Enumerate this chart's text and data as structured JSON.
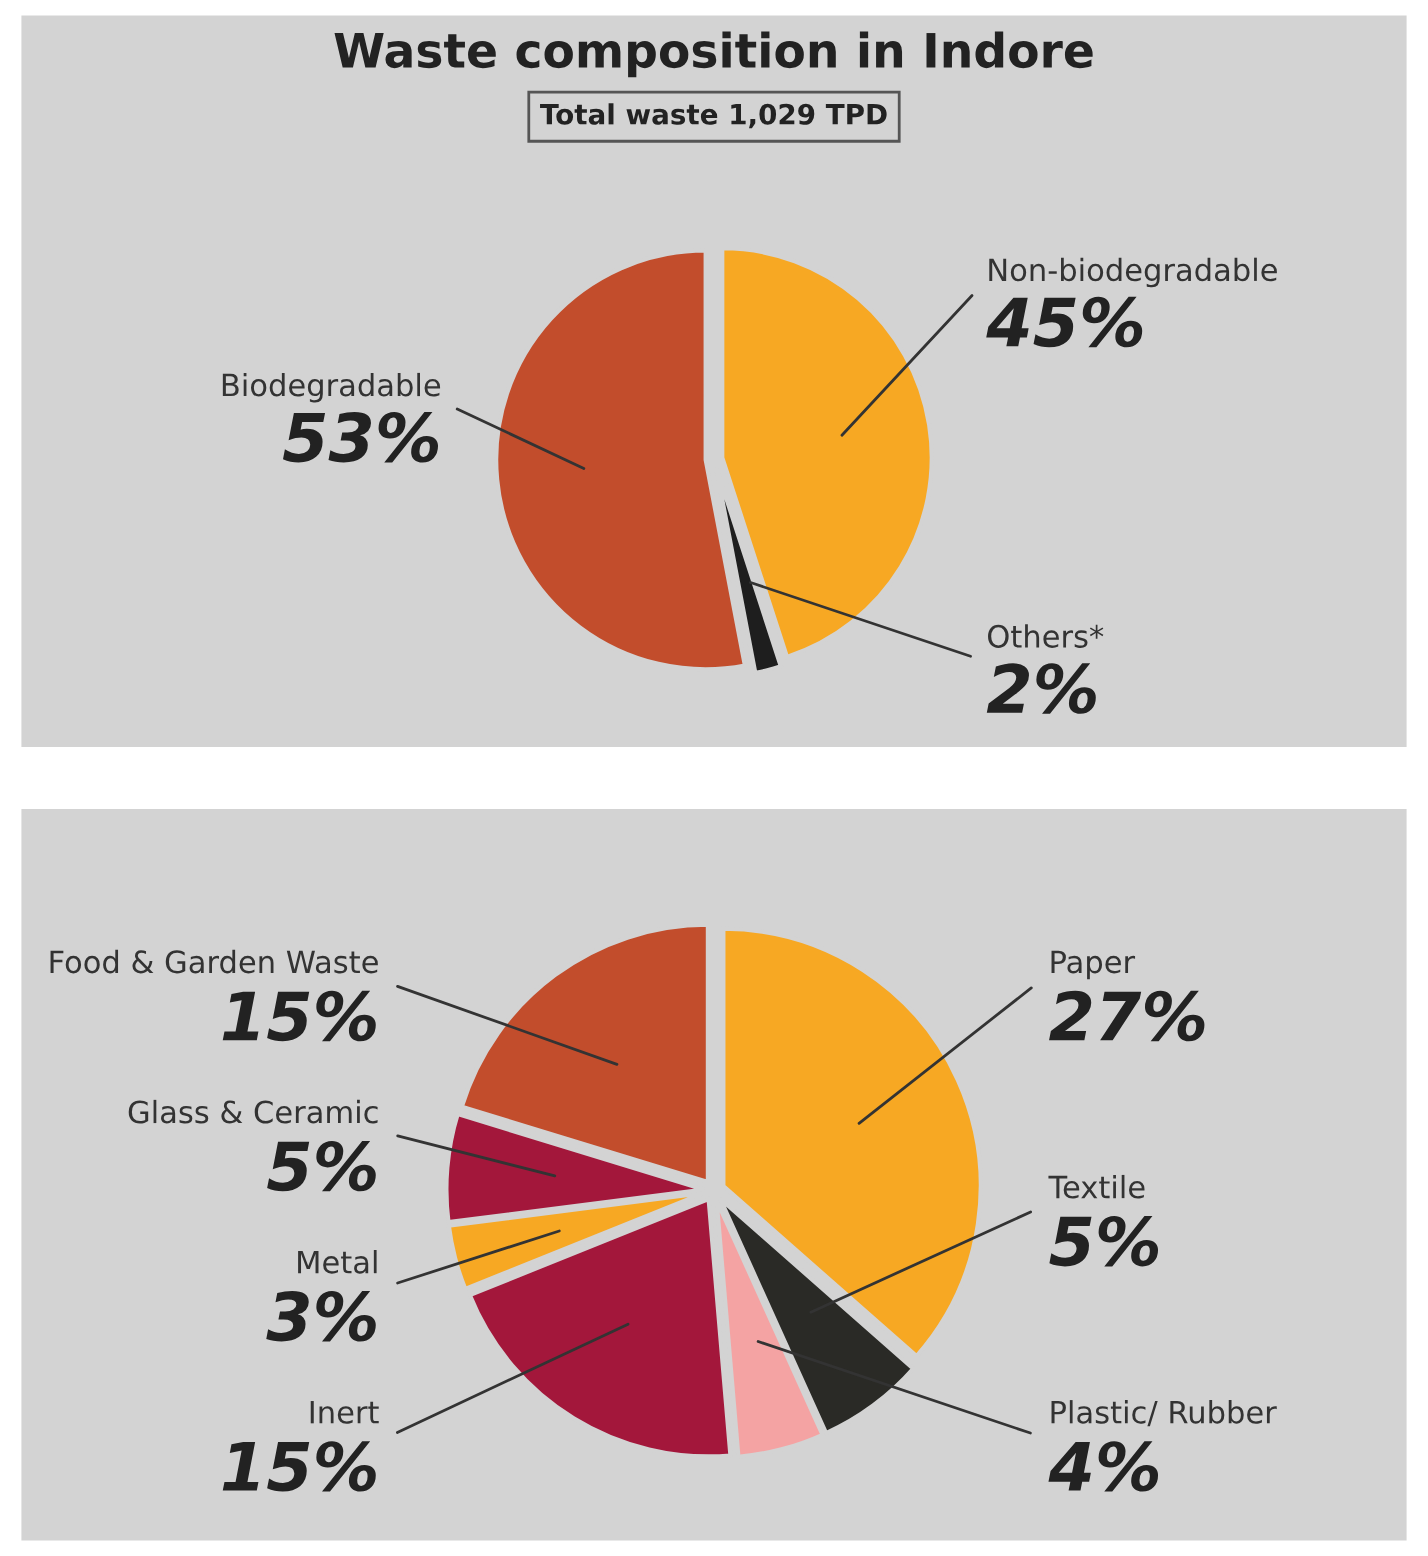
{
  "chart_data": [
    {
      "type": "pie",
      "title": "Waste composition in Indore",
      "subtitle": "Total waste 1,029 TPD",
      "categories": [
        "Non-biodegradable",
        "Others*",
        "Biodegradable"
      ],
      "values": [
        45,
        2,
        53
      ],
      "value_labels": [
        "45%",
        "2%",
        "53%"
      ],
      "colors": [
        "#f7a823",
        "#1e1e1e",
        "#c24d2c"
      ]
    },
    {
      "type": "pie",
      "categories": [
        "Paper",
        "Textile",
        "Plastic/ Rubber",
        "Inert",
        "Metal",
        "Glass & Ceramic",
        "Food & Garden Waste"
      ],
      "values": [
        27,
        5,
        4,
        15,
        3,
        5,
        15
      ],
      "value_labels": [
        "27%",
        "5%",
        "4%",
        "15%",
        "3%",
        "5%",
        "15%"
      ],
      "colors": [
        "#f7a823",
        "#2a2a26",
        "#f4a3a3",
        "#a3173b",
        "#f7a823",
        "#a3173b",
        "#c24d2c"
      ]
    }
  ]
}
